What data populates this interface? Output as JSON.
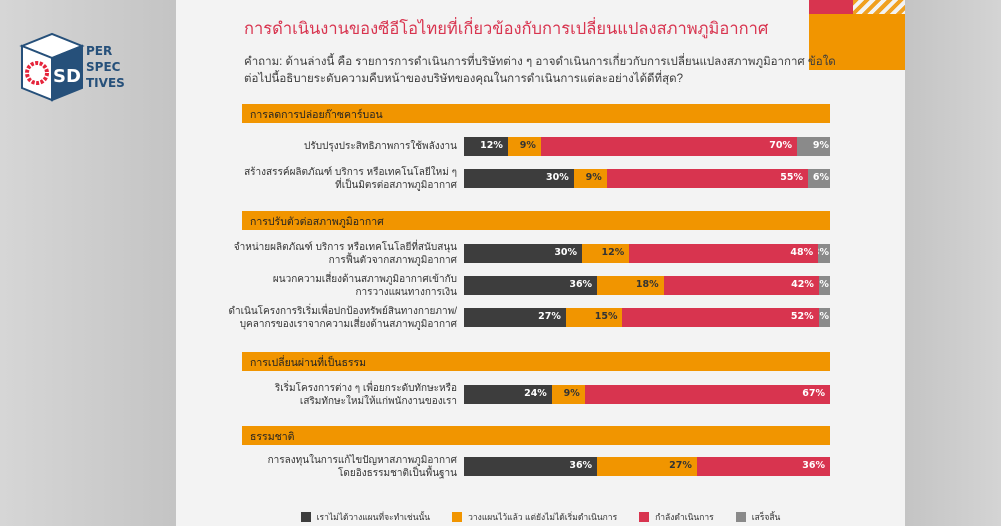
{
  "logo": {
    "mark": "SD",
    "words": [
      "PER",
      "SPEC",
      "TIVES"
    ]
  },
  "chart_data": {
    "type": "bar",
    "stacked": true,
    "orientation": "horizontal",
    "title": "การดำเนินงานของซีอีโอไทยที่เกี่ยวข้องกับการเปลี่ยนแปลงสภาพภูมิอากาศ",
    "question": "คำถาม: ด้านล่างนี้ คือ รายการการดำเนินการที่บริษัทต่าง ๆ อาจดำเนินการเกี่ยวกับการเปลี่ยนแปลงสภาพภูมิอากาศ ข้อใดต่อไปนี้อธิบายระดับความคืบหน้าของบริษัทของคุณในการดำเนินการแต่ละอย่างได้ดีที่สุด?",
    "xlim": [
      0,
      100
    ],
    "legend_position": "bottom",
    "series": [
      {
        "name": "เราไม่ได้วางแผนที่จะทำเช่นนั้น",
        "color": "#3d3d3d"
      },
      {
        "name": "วางแผนไว้แล้ว แต่ยังไม่ได้เริ่มดำเนินการ",
        "color": "#f19500"
      },
      {
        "name": "กำลังดำเนินการ",
        "color": "#d8344f"
      },
      {
        "name": "เสร็จสิ้น",
        "color": "#8a8a8a"
      }
    ],
    "categories": [
      {
        "name": "การลดการปล่อยก๊าซคาร์บอน",
        "rows": [
          {
            "label": [
              "ปรับปรุงประสิทธิภาพการใช้พลังงาน"
            ],
            "values": [
              12,
              9,
              70,
              9
            ]
          },
          {
            "label": [
              "สร้างสรรค์ผลิตภัณฑ์ บริการ หรือเทคโนโลยีใหม่ ๆ",
              "ที่เป็นมิตรต่อสภาพภูมิอากาศ"
            ],
            "values": [
              30,
              9,
              55,
              6
            ]
          }
        ]
      },
      {
        "name": "การปรับตัวต่อสภาพภูมิอากาศ",
        "rows": [
          {
            "label": [
              "จำหน่ายผลิตภัณฑ์ บริการ หรือเทคโนโลยีที่สนับสนุน",
              "การฟื้นตัวจากสภาพภูมิอากาศ"
            ],
            "values": [
              30,
              12,
              48,
              3
            ]
          },
          {
            "label": [
              "ผนวกความเสี่ยงด้านสภาพภูมิอากาศเข้ากับ",
              "การวางแผนทางการเงิน"
            ],
            "values": [
              36,
              18,
              42,
              3
            ]
          },
          {
            "label": [
              "ดำเนินโครงการริเริ่มเพื่อปกป้องทรัพย์สินทางกายภาพ/",
              "บุคลากรของเราจากความเสี่ยงด้านสภาพภูมิอากาศ"
            ],
            "values": [
              27,
              15,
              52,
              3
            ]
          }
        ]
      },
      {
        "name": "การเปลี่ยนผ่านที่เป็นธรรม",
        "rows": [
          {
            "label": [
              "ริเริ่มโครงการต่าง ๆ เพื่อยกระดับทักษะหรือ",
              "เสริมทักษะใหม่ให้แก่พนักงานของเรา"
            ],
            "values": [
              24,
              9,
              67,
              0
            ]
          }
        ]
      },
      {
        "name": "ธรรมชาติ",
        "rows": [
          {
            "label": [
              "การลงทุนในการแก้ไขปัญหาสภาพภูมิอากาศ",
              "โดยอิงธรรมชาติเป็นพื้นฐาน"
            ],
            "values": [
              36,
              27,
              36,
              0
            ]
          }
        ]
      }
    ]
  }
}
